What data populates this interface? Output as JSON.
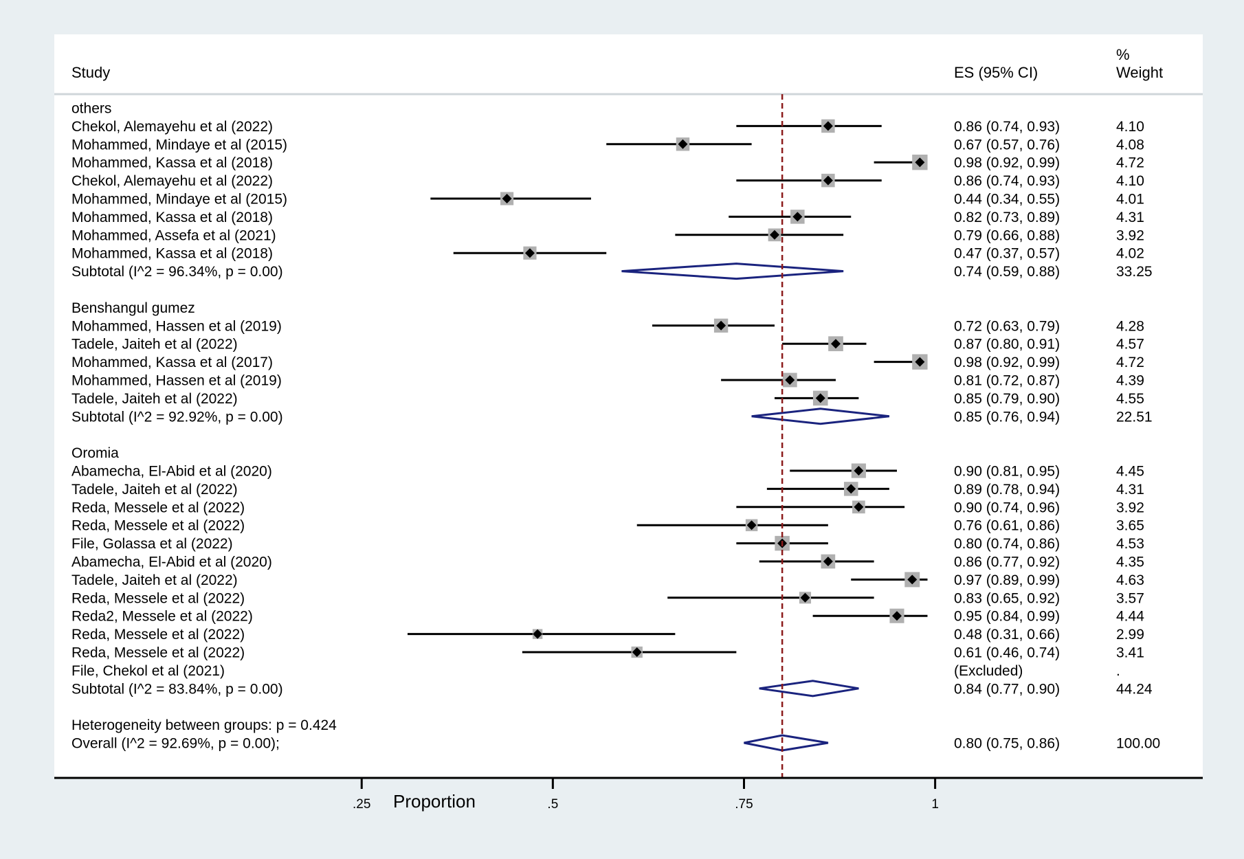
{
  "chart_data": {
    "type": "forest",
    "headers": {
      "study": "Study",
      "es": "ES (95% CI)",
      "weight_line1": "%",
      "weight_line2": "Weight"
    },
    "xlabel": "Proportion",
    "x_ticks": [
      {
        "value": 0.25,
        "label": ".25"
      },
      {
        "value": 0.5,
        "label": ".5"
      },
      {
        "value": 0.75,
        "label": ".75"
      },
      {
        "value": 1.0,
        "label": "1"
      }
    ],
    "xlim": [
      -0.152,
      1.35
    ],
    "reference_line": 0.8,
    "colors": {
      "marker": "#000000",
      "weight_box": "#b0b0b0",
      "diamond": "#1a237e",
      "reference": "#8b1a1a",
      "panel": "#ffffff",
      "background": "#e9eff2"
    },
    "groups": [
      {
        "name": "others",
        "studies": [
          {
            "label": "Chekol, Alemayehu et al  (2022)",
            "es": 0.86,
            "lo": 0.74,
            "hi": 0.93,
            "es_text": "0.86 (0.74, 0.93)",
            "weight": "4.10"
          },
          {
            "label": "Mohammed, Mindaye et al (2015)",
            "es": 0.67,
            "lo": 0.57,
            "hi": 0.76,
            "es_text": "0.67 (0.57, 0.76)",
            "weight": "4.08"
          },
          {
            "label": "Mohammed, Kassa et al (2018)",
            "es": 0.98,
            "lo": 0.92,
            "hi": 0.99,
            "es_text": "0.98 (0.92, 0.99)",
            "weight": "4.72"
          },
          {
            "label": "Chekol, Alemayehu et al (2022)",
            "es": 0.86,
            "lo": 0.74,
            "hi": 0.93,
            "es_text": "0.86 (0.74, 0.93)",
            "weight": "4.10"
          },
          {
            "label": "Mohammed, Mindaye et al (2015)",
            "es": 0.44,
            "lo": 0.34,
            "hi": 0.55,
            "es_text": "0.44 (0.34, 0.55)",
            "weight": "4.01"
          },
          {
            "label": "Mohammed, Kassa et al (2018)",
            "es": 0.82,
            "lo": 0.73,
            "hi": 0.89,
            "es_text": "0.82 (0.73, 0.89)",
            "weight": "4.31"
          },
          {
            "label": "Mohammed, Assefa et al (2021)",
            "es": 0.79,
            "lo": 0.66,
            "hi": 0.88,
            "es_text": "0.79 (0.66, 0.88)",
            "weight": "3.92"
          },
          {
            "label": "Mohammed, Kassa et al (2018)",
            "es": 0.47,
            "lo": 0.37,
            "hi": 0.57,
            "es_text": "0.47 (0.37, 0.57)",
            "weight": "4.02"
          }
        ],
        "subtotal": {
          "label": "Subtotal  (I^2 = 96.34%, p = 0.00)",
          "es": 0.74,
          "lo": 0.59,
          "hi": 0.88,
          "es_text": "0.74 (0.59, 0.88)",
          "weight": "33.25"
        }
      },
      {
        "name": "Benshangul gumez",
        "studies": [
          {
            "label": "Mohammed, Hassen et al (2019)",
            "es": 0.72,
            "lo": 0.63,
            "hi": 0.79,
            "es_text": "0.72 (0.63, 0.79)",
            "weight": "4.28"
          },
          {
            "label": "Tadele, Jaiteh et al (2022)",
            "es": 0.87,
            "lo": 0.8,
            "hi": 0.91,
            "es_text": "0.87 (0.80, 0.91)",
            "weight": "4.57"
          },
          {
            "label": "Mohammed, Kassa et al  (2017)",
            "es": 0.98,
            "lo": 0.92,
            "hi": 0.99,
            "es_text": "0.98 (0.92, 0.99)",
            "weight": "4.72"
          },
          {
            "label": "Mohammed, Hassen et al (2019)",
            "es": 0.81,
            "lo": 0.72,
            "hi": 0.87,
            "es_text": "0.81 (0.72, 0.87)",
            "weight": "4.39"
          },
          {
            "label": "Tadele, Jaiteh et al (2022)",
            "es": 0.85,
            "lo": 0.79,
            "hi": 0.9,
            "es_text": "0.85 (0.79, 0.90)",
            "weight": "4.55"
          }
        ],
        "subtotal": {
          "label": "Subtotal  (I^2 = 92.92%, p = 0.00)",
          "es": 0.85,
          "lo": 0.76,
          "hi": 0.94,
          "es_text": "0.85 (0.76, 0.94)",
          "weight": "22.51"
        }
      },
      {
        "name": "Oromia",
        "studies": [
          {
            "label": "Abamecha, El-Abid et al (2020)",
            "es": 0.9,
            "lo": 0.81,
            "hi": 0.95,
            "es_text": "0.90 (0.81, 0.95)",
            "weight": "4.45"
          },
          {
            "label": "Tadele, Jaiteh et al (2022)",
            "es": 0.89,
            "lo": 0.78,
            "hi": 0.94,
            "es_text": "0.89 (0.78, 0.94)",
            "weight": "4.31"
          },
          {
            "label": "Reda, Messele et al (2022)",
            "es": 0.9,
            "lo": 0.74,
            "hi": 0.96,
            "es_text": "0.90 (0.74, 0.96)",
            "weight": "3.92"
          },
          {
            "label": "Reda, Messele et al (2022)",
            "es": 0.76,
            "lo": 0.61,
            "hi": 0.86,
            "es_text": "0.76 (0.61, 0.86)",
            "weight": "3.65"
          },
          {
            "label": "File, Golassa et al (2022)",
            "es": 0.8,
            "lo": 0.74,
            "hi": 0.86,
            "es_text": "0.80 (0.74, 0.86)",
            "weight": "4.53"
          },
          {
            "label": "Abamecha, El-Abid et al (2020)",
            "es": 0.86,
            "lo": 0.77,
            "hi": 0.92,
            "es_text": "0.86 (0.77, 0.92)",
            "weight": "4.35"
          },
          {
            "label": "Tadele, Jaiteh et al (2022)",
            "es": 0.97,
            "lo": 0.89,
            "hi": 0.99,
            "es_text": "0.97 (0.89, 0.99)",
            "weight": "4.63"
          },
          {
            "label": "Reda, Messele et al (2022)",
            "es": 0.83,
            "lo": 0.65,
            "hi": 0.92,
            "es_text": "0.83 (0.65, 0.92)",
            "weight": "3.57"
          },
          {
            "label": "Reda2, Messele et al (2022)",
            "es": 0.95,
            "lo": 0.84,
            "hi": 0.99,
            "es_text": "0.95 (0.84, 0.99)",
            "weight": "4.44"
          },
          {
            "label": "Reda, Messele et al (2022)",
            "es": 0.48,
            "lo": 0.31,
            "hi": 0.66,
            "es_text": "0.48 (0.31, 0.66)",
            "weight": "2.99"
          },
          {
            "label": "Reda, Messele et al (2022)",
            "es": 0.61,
            "lo": 0.46,
            "hi": 0.74,
            "es_text": "0.61 (0.46, 0.74)",
            "weight": "3.41"
          },
          {
            "label": "File, Chekol et al (2021)",
            "es": null,
            "lo": null,
            "hi": null,
            "es_text": "(Excluded)",
            "weight": "."
          }
        ],
        "subtotal": {
          "label": "Subtotal  (I^2 = 83.84%, p = 0.00)",
          "es": 0.84,
          "lo": 0.77,
          "hi": 0.9,
          "es_text": "0.84 (0.77, 0.90)",
          "weight": "44.24"
        }
      }
    ],
    "heterogeneity": "Heterogeneity between groups: p = 0.424",
    "overall": {
      "label": "Overall  (I^2 = 92.69%, p = 0.00);",
      "es": 0.8,
      "lo": 0.75,
      "hi": 0.86,
      "es_text": "0.80 (0.75, 0.86)",
      "weight": "100.00"
    }
  }
}
